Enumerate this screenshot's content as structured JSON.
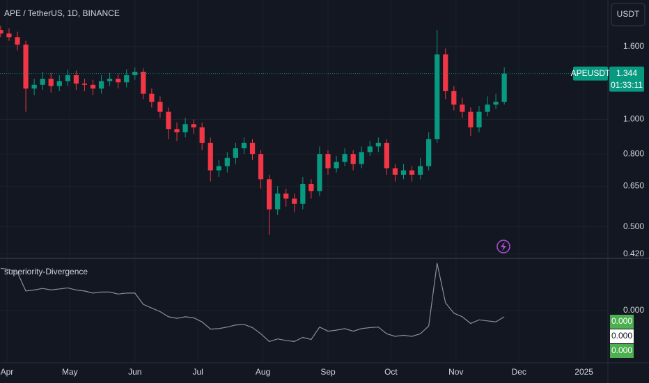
{
  "chart_data": {
    "type": "candlestick",
    "title": "APE / TetherUS, 1D, BINANCE",
    "currency_button": "USDT",
    "log_scale": true,
    "grid": true,
    "up_color": "#089981",
    "down_color": "#f23645",
    "xlim": [
      -3.3,
      286.4
    ],
    "xticks": [
      {
        "value": 0,
        "label": "Apr"
      },
      {
        "value": 30,
        "label": "May"
      },
      {
        "value": 61,
        "label": "Jun"
      },
      {
        "value": 91,
        "label": "Jul"
      },
      {
        "value": 122,
        "label": "Aug"
      },
      {
        "value": 153,
        "label": "Sep"
      },
      {
        "value": 183,
        "label": "Oct"
      },
      {
        "value": 214,
        "label": "Nov"
      },
      {
        "value": 244,
        "label": "Dec"
      },
      {
        "value": 275,
        "label": "2025"
      }
    ],
    "ylim": [
      0.41,
      2.16
    ],
    "yticks": [
      {
        "value": 1.6,
        "label": "1.600"
      },
      {
        "value": 1,
        "label": "1.000"
      },
      {
        "value": 0.8,
        "label": "0.800"
      },
      {
        "value": 0.65,
        "label": "0.650"
      },
      {
        "value": 0.5,
        "label": "0.500"
      },
      {
        "value": 0.42,
        "label": "0.420"
      }
    ],
    "last_price": {
      "symbol": "APEUSDT",
      "value": 1.344,
      "countdown": "01:33:11",
      "color": "#089981"
    },
    "x": [
      -3,
      1,
      5,
      9,
      13,
      17,
      21,
      25,
      29,
      33,
      37,
      41,
      45,
      49,
      53,
      57,
      61,
      65,
      69,
      73,
      77,
      81,
      85,
      89,
      93,
      97,
      101,
      105,
      109,
      113,
      117,
      121,
      125,
      129,
      133,
      137,
      141,
      145,
      149,
      153,
      157,
      161,
      165,
      169,
      173,
      177,
      181,
      185,
      189,
      193,
      197,
      201,
      205,
      209,
      213,
      217,
      221,
      225,
      229,
      233,
      237
    ],
    "open": [
      1.78,
      1.74,
      1.7,
      1.62,
      1.22,
      1.25,
      1.3,
      1.24,
      1.28,
      1.33,
      1.26,
      1.25,
      1.22,
      1.28,
      1.3,
      1.27,
      1.33,
      1.36,
      1.18,
      1.12,
      1.05,
      0.94,
      0.92,
      0.97,
      0.95,
      0.86,
      0.72,
      0.74,
      0.78,
      0.83,
      0.86,
      0.8,
      0.68,
      0.56,
      0.62,
      0.6,
      0.58,
      0.66,
      0.63,
      0.8,
      0.73,
      0.76,
      0.8,
      0.75,
      0.81,
      0.84,
      0.86,
      0.73,
      0.7,
      0.72,
      0.7,
      0.74,
      0.88,
      1.52,
      1.2,
      1.1,
      1.05,
      0.95,
      1.05,
      1.1,
      1.12
    ],
    "high": [
      1.83,
      1.8,
      1.76,
      1.66,
      1.3,
      1.36,
      1.35,
      1.33,
      1.38,
      1.37,
      1.3,
      1.29,
      1.33,
      1.35,
      1.34,
      1.38,
      1.4,
      1.39,
      1.22,
      1.16,
      1.08,
      0.98,
      1.01,
      1.0,
      0.98,
      0.89,
      0.77,
      0.81,
      0.86,
      0.89,
      0.88,
      0.82,
      0.7,
      0.65,
      0.64,
      0.62,
      0.69,
      0.68,
      0.84,
      0.82,
      0.79,
      0.83,
      0.82,
      0.84,
      0.87,
      0.89,
      0.88,
      0.75,
      0.75,
      0.74,
      0.78,
      0.92,
      1.78,
      1.58,
      1.24,
      1.15,
      1.08,
      1.09,
      1.16,
      1.18,
      1.4
    ],
    "low": [
      1.7,
      1.66,
      1.56,
      1.05,
      1.17,
      1.21,
      1.19,
      1.2,
      1.24,
      1.21,
      1.2,
      1.17,
      1.18,
      1.24,
      1.22,
      1.23,
      1.29,
      1.14,
      1.08,
      1.01,
      0.88,
      0.87,
      0.89,
      0.91,
      0.82,
      0.67,
      0.69,
      0.71,
      0.75,
      0.8,
      0.77,
      0.64,
      0.475,
      0.54,
      0.57,
      0.55,
      0.56,
      0.6,
      0.61,
      0.7,
      0.71,
      0.74,
      0.72,
      0.73,
      0.79,
      0.81,
      0.7,
      0.67,
      0.68,
      0.67,
      0.68,
      0.72,
      0.86,
      1.14,
      1.06,
      1.01,
      0.9,
      0.92,
      1.02,
      1.07,
      1.1
    ],
    "close": [
      1.74,
      1.7,
      1.62,
      1.22,
      1.25,
      1.3,
      1.24,
      1.28,
      1.33,
      1.26,
      1.25,
      1.22,
      1.28,
      1.3,
      1.27,
      1.33,
      1.36,
      1.18,
      1.12,
      1.05,
      0.94,
      0.92,
      0.97,
      0.95,
      0.86,
      0.72,
      0.74,
      0.78,
      0.83,
      0.86,
      0.8,
      0.68,
      0.56,
      0.62,
      0.6,
      0.58,
      0.66,
      0.63,
      0.8,
      0.73,
      0.76,
      0.8,
      0.75,
      0.81,
      0.84,
      0.86,
      0.73,
      0.7,
      0.72,
      0.7,
      0.74,
      0.88,
      1.52,
      1.2,
      1.1,
      1.05,
      0.95,
      1.05,
      1.1,
      1.12,
      1.344
    ],
    "indicator": {
      "name": "superiority-Divergence",
      "color": "#8a8f9a",
      "ylim": [
        -1,
        1
      ],
      "yticks": [
        {
          "value": 0,
          "label": "0.000"
        }
      ],
      "values": [
        0.82,
        0.8,
        0.74,
        0.38,
        0.4,
        0.43,
        0.4,
        0.42,
        0.44,
        0.4,
        0.38,
        0.34,
        0.36,
        0.36,
        0.32,
        0.34,
        0.34,
        0.12,
        0.05,
        -0.02,
        -0.12,
        -0.15,
        -0.12,
        -0.14,
        -0.22,
        -0.36,
        -0.35,
        -0.32,
        -0.28,
        -0.27,
        -0.33,
        -0.45,
        -0.6,
        -0.55,
        -0.58,
        -0.6,
        -0.52,
        -0.56,
        -0.32,
        -0.4,
        -0.38,
        -0.35,
        -0.4,
        -0.35,
        -0.33,
        -0.32,
        -0.45,
        -0.5,
        -0.48,
        -0.5,
        -0.45,
        -0.3,
        0.92,
        0.15,
        -0.05,
        -0.12,
        -0.25,
        -0.18,
        -0.2,
        -0.22,
        -0.12
      ],
      "markers": [
        {
          "label": "0.000",
          "color": "#4caf50"
        },
        {
          "label": "0.000",
          "color": "#ffffff"
        },
        {
          "label": "0.000",
          "color": "#4caf50"
        }
      ]
    }
  }
}
